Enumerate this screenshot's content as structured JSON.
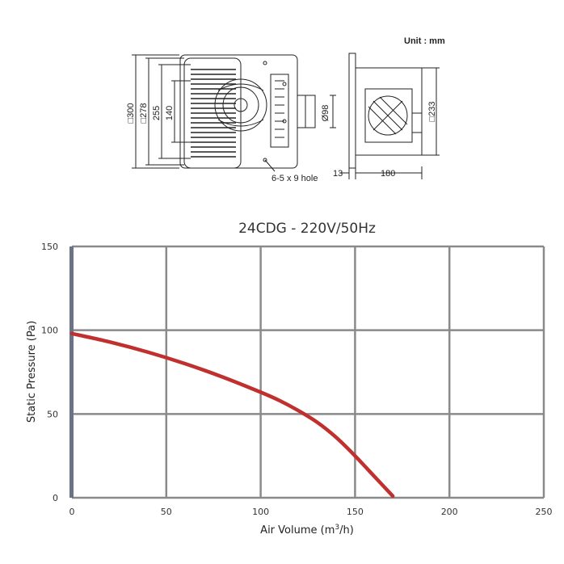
{
  "drawing": {
    "unit_note": "Unit : mm",
    "dims": {
      "d300": "□300",
      "d278": "□278",
      "d255": "255",
      "d140": "140",
      "d98": "Ø98",
      "d233": "□233",
      "d13": "13",
      "d180": "180",
      "hole": "6-5 x 9 hole"
    }
  },
  "chart_data": {
    "type": "line",
    "title": "24CDG - 220V/50Hz",
    "xlabel": "Air Volume (m",
    "xlabel_sup": "3",
    "xlabel_end": "/h)",
    "ylabel": "Static Pressure (Pa)",
    "xlim": [
      0,
      250
    ],
    "ylim": [
      0,
      150
    ],
    "x_ticks": [
      0,
      50,
      100,
      150,
      200,
      250
    ],
    "y_ticks": [
      0,
      50,
      100,
      150
    ],
    "grid": true,
    "series_color": "#c0302e",
    "series": [
      {
        "x": [
          0,
          20,
          40,
          60,
          80,
          100,
          110,
          120,
          130,
          140,
          150,
          160,
          170
        ],
        "y": [
          98,
          93,
          87,
          80,
          72,
          63,
          58,
          52,
          45,
          36,
          25,
          13,
          1
        ]
      }
    ]
  }
}
